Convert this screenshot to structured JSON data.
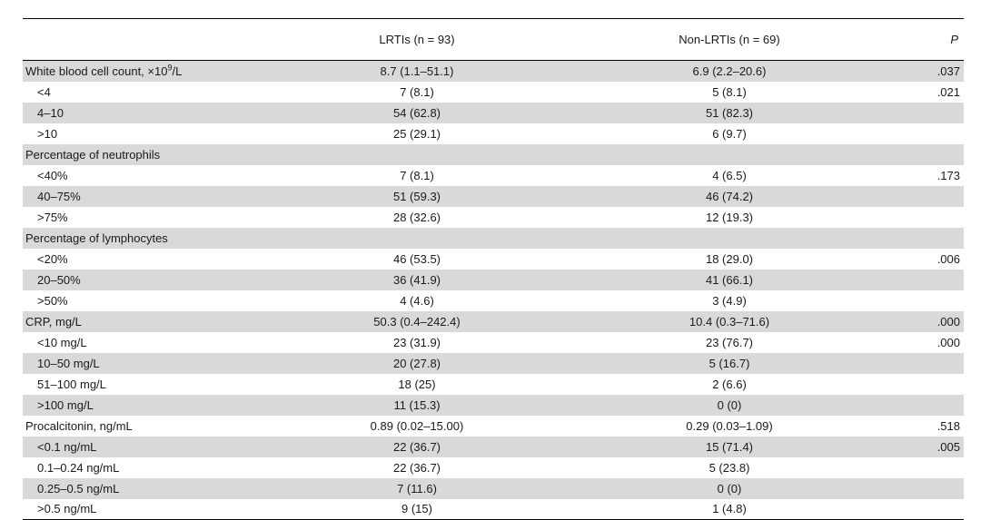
{
  "table": {
    "headers": {
      "label": "",
      "lrti": "LRTIs (n = 93)",
      "non_lrti": "Non-LRTIs (n = 69)",
      "p": "P"
    },
    "rows": [
      {
        "label": "White blood cell count, ×10",
        "sup": "9",
        "label_suffix": "/L",
        "indent": false,
        "lrti": "8.7 (1.1–51.1)",
        "non_lrti": "6.9 (2.2–20.6)",
        "p": ".037",
        "shaded": true
      },
      {
        "label": "<4",
        "indent": true,
        "lrti": "7 (8.1)",
        "non_lrti": "5 (8.1)",
        "p": ".021",
        "shaded": false
      },
      {
        "label": "4–10",
        "indent": true,
        "lrti": "54 (62.8)",
        "non_lrti": "51 (82.3)",
        "p": "",
        "shaded": true
      },
      {
        "label": ">10",
        "indent": true,
        "lrti": "25 (29.1)",
        "non_lrti": "6 (9.7)",
        "p": "",
        "shaded": false
      },
      {
        "label": "Percentage of neutrophils",
        "indent": false,
        "lrti": "",
        "non_lrti": "",
        "p": "",
        "shaded": true
      },
      {
        "label": "<40%",
        "indent": true,
        "lrti": "7 (8.1)",
        "non_lrti": "4 (6.5)",
        "p": ".173",
        "shaded": false
      },
      {
        "label": "40–75%",
        "indent": true,
        "lrti": "51 (59.3)",
        "non_lrti": "46 (74.2)",
        "p": "",
        "shaded": true
      },
      {
        "label": ">75%",
        "indent": true,
        "lrti": "28 (32.6)",
        "non_lrti": "12 (19.3)",
        "p": "",
        "shaded": false
      },
      {
        "label": "Percentage of lymphocytes",
        "indent": false,
        "lrti": "",
        "non_lrti": "",
        "p": "",
        "shaded": true
      },
      {
        "label": "<20%",
        "indent": true,
        "lrti": "46 (53.5)",
        "non_lrti": "18 (29.0)",
        "p": ".006",
        "shaded": false
      },
      {
        "label": "20–50%",
        "indent": true,
        "lrti": "36 (41.9)",
        "non_lrti": "41 (66.1)",
        "p": "",
        "shaded": true
      },
      {
        "label": ">50%",
        "indent": true,
        "lrti": "4 (4.6)",
        "non_lrti": "3 (4.9)",
        "p": "",
        "shaded": false
      },
      {
        "label": "CRP, mg/L",
        "indent": false,
        "lrti": "50.3 (0.4–242.4)",
        "non_lrti": "10.4 (0.3–71.6)",
        "p": ".000",
        "shaded": true
      },
      {
        "label": "<10 mg/L",
        "indent": true,
        "lrti": "23 (31.9)",
        "non_lrti": "23 (76.7)",
        "p": ".000",
        "shaded": false
      },
      {
        "label": "10–50 mg/L",
        "indent": true,
        "lrti": "20 (27.8)",
        "non_lrti": "5 (16.7)",
        "p": "",
        "shaded": true
      },
      {
        "label": "51–100 mg/L",
        "indent": true,
        "lrti": "18 (25)",
        "non_lrti": "2 (6.6)",
        "p": "",
        "shaded": false
      },
      {
        "label": ">100 mg/L",
        "indent": true,
        "lrti": "11 (15.3)",
        "non_lrti": "0 (0)",
        "p": "",
        "shaded": true
      },
      {
        "label": "Procalcitonin, ng/mL",
        "indent": false,
        "lrti": "0.89 (0.02–15.00)",
        "non_lrti": "0.29 (0.03–1.09)",
        "p": ".518",
        "shaded": false
      },
      {
        "label": "<0.1 ng/mL",
        "indent": true,
        "lrti": "22 (36.7)",
        "non_lrti": "15 (71.4)",
        "p": ".005",
        "shaded": true
      },
      {
        "label": "0.1–0.24 ng/mL",
        "indent": true,
        "lrti": "22 (36.7)",
        "non_lrti": "5 (23.8)",
        "p": "",
        "shaded": false
      },
      {
        "label": "0.25–0.5 ng/mL",
        "indent": true,
        "lrti": "7 (11.6)",
        "non_lrti": "0 (0)",
        "p": "",
        "shaded": true
      },
      {
        "label": ">0.5 ng/mL",
        "indent": true,
        "lrti": "9 (15)",
        "non_lrti": "1 (4.8)",
        "p": "",
        "shaded": false
      }
    ]
  },
  "colors": {
    "shade": "#d9d9d9",
    "rule": "#000000"
  }
}
